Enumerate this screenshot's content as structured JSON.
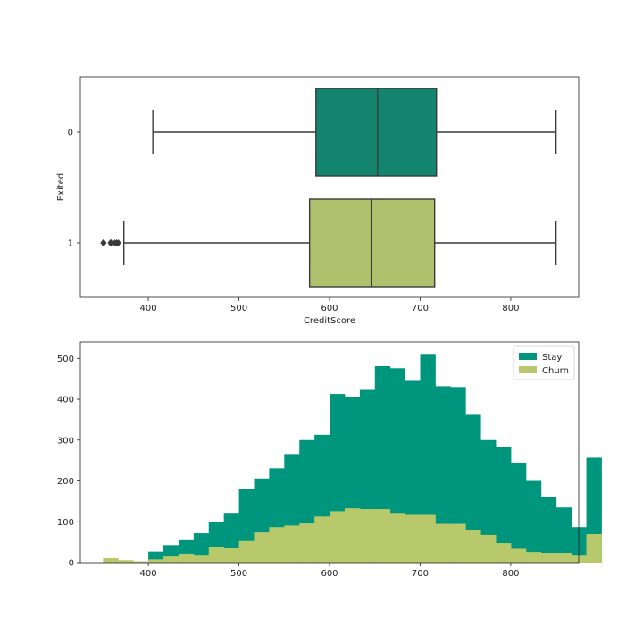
{
  "chart_data": [
    {
      "type": "boxplot",
      "orientation": "horizontal",
      "xlabel": "CreditScore",
      "ylabel": "Exited",
      "xlim": [
        325,
        875
      ],
      "xticks": [
        400,
        500,
        600,
        700,
        800
      ],
      "categories": [
        "0",
        "1"
      ],
      "boxes": [
        {
          "category": "0",
          "whisker_low": 405,
          "q1": 585,
          "median": 653,
          "q3": 718,
          "whisker_high": 850,
          "outliers": [],
          "color": "#13856f"
        },
        {
          "category": "1",
          "whisker_low": 373,
          "q1": 578,
          "median": 646,
          "q3": 716,
          "whisker_high": 850,
          "outliers": [
            350,
            351,
            358,
            359,
            363,
            365,
            367
          ],
          "color": "#b0c16d"
        }
      ]
    },
    {
      "type": "histogram",
      "stacked": false,
      "bin_start": 350,
      "bin_width": 16.67,
      "xlim": [
        325,
        875
      ],
      "ylim": [
        0,
        540
      ],
      "xticks": [
        400,
        500,
        600,
        700,
        800
      ],
      "yticks": [
        0,
        100,
        200,
        300,
        400,
        500
      ],
      "legend_position": "upper-right",
      "series": [
        {
          "name": "Stay",
          "color": "#00957d",
          "values": [
            0,
            0,
            0,
            27,
            43,
            55,
            72,
            100,
            122,
            180,
            206,
            231,
            266,
            300,
            313,
            413,
            406,
            423,
            481,
            476,
            445,
            511,
            432,
            430,
            362,
            300,
            284,
            245,
            200,
            160,
            135,
            87,
            257
          ]
        },
        {
          "name": "Churn",
          "color": "#b7c96a",
          "values": [
            11,
            6,
            3,
            8,
            15,
            22,
            17,
            38,
            35,
            53,
            74,
            87,
            91,
            96,
            113,
            126,
            133,
            131,
            131,
            122,
            117,
            117,
            95,
            95,
            79,
            68,
            48,
            34,
            26,
            24,
            24,
            17,
            70
          ]
        }
      ]
    }
  ]
}
